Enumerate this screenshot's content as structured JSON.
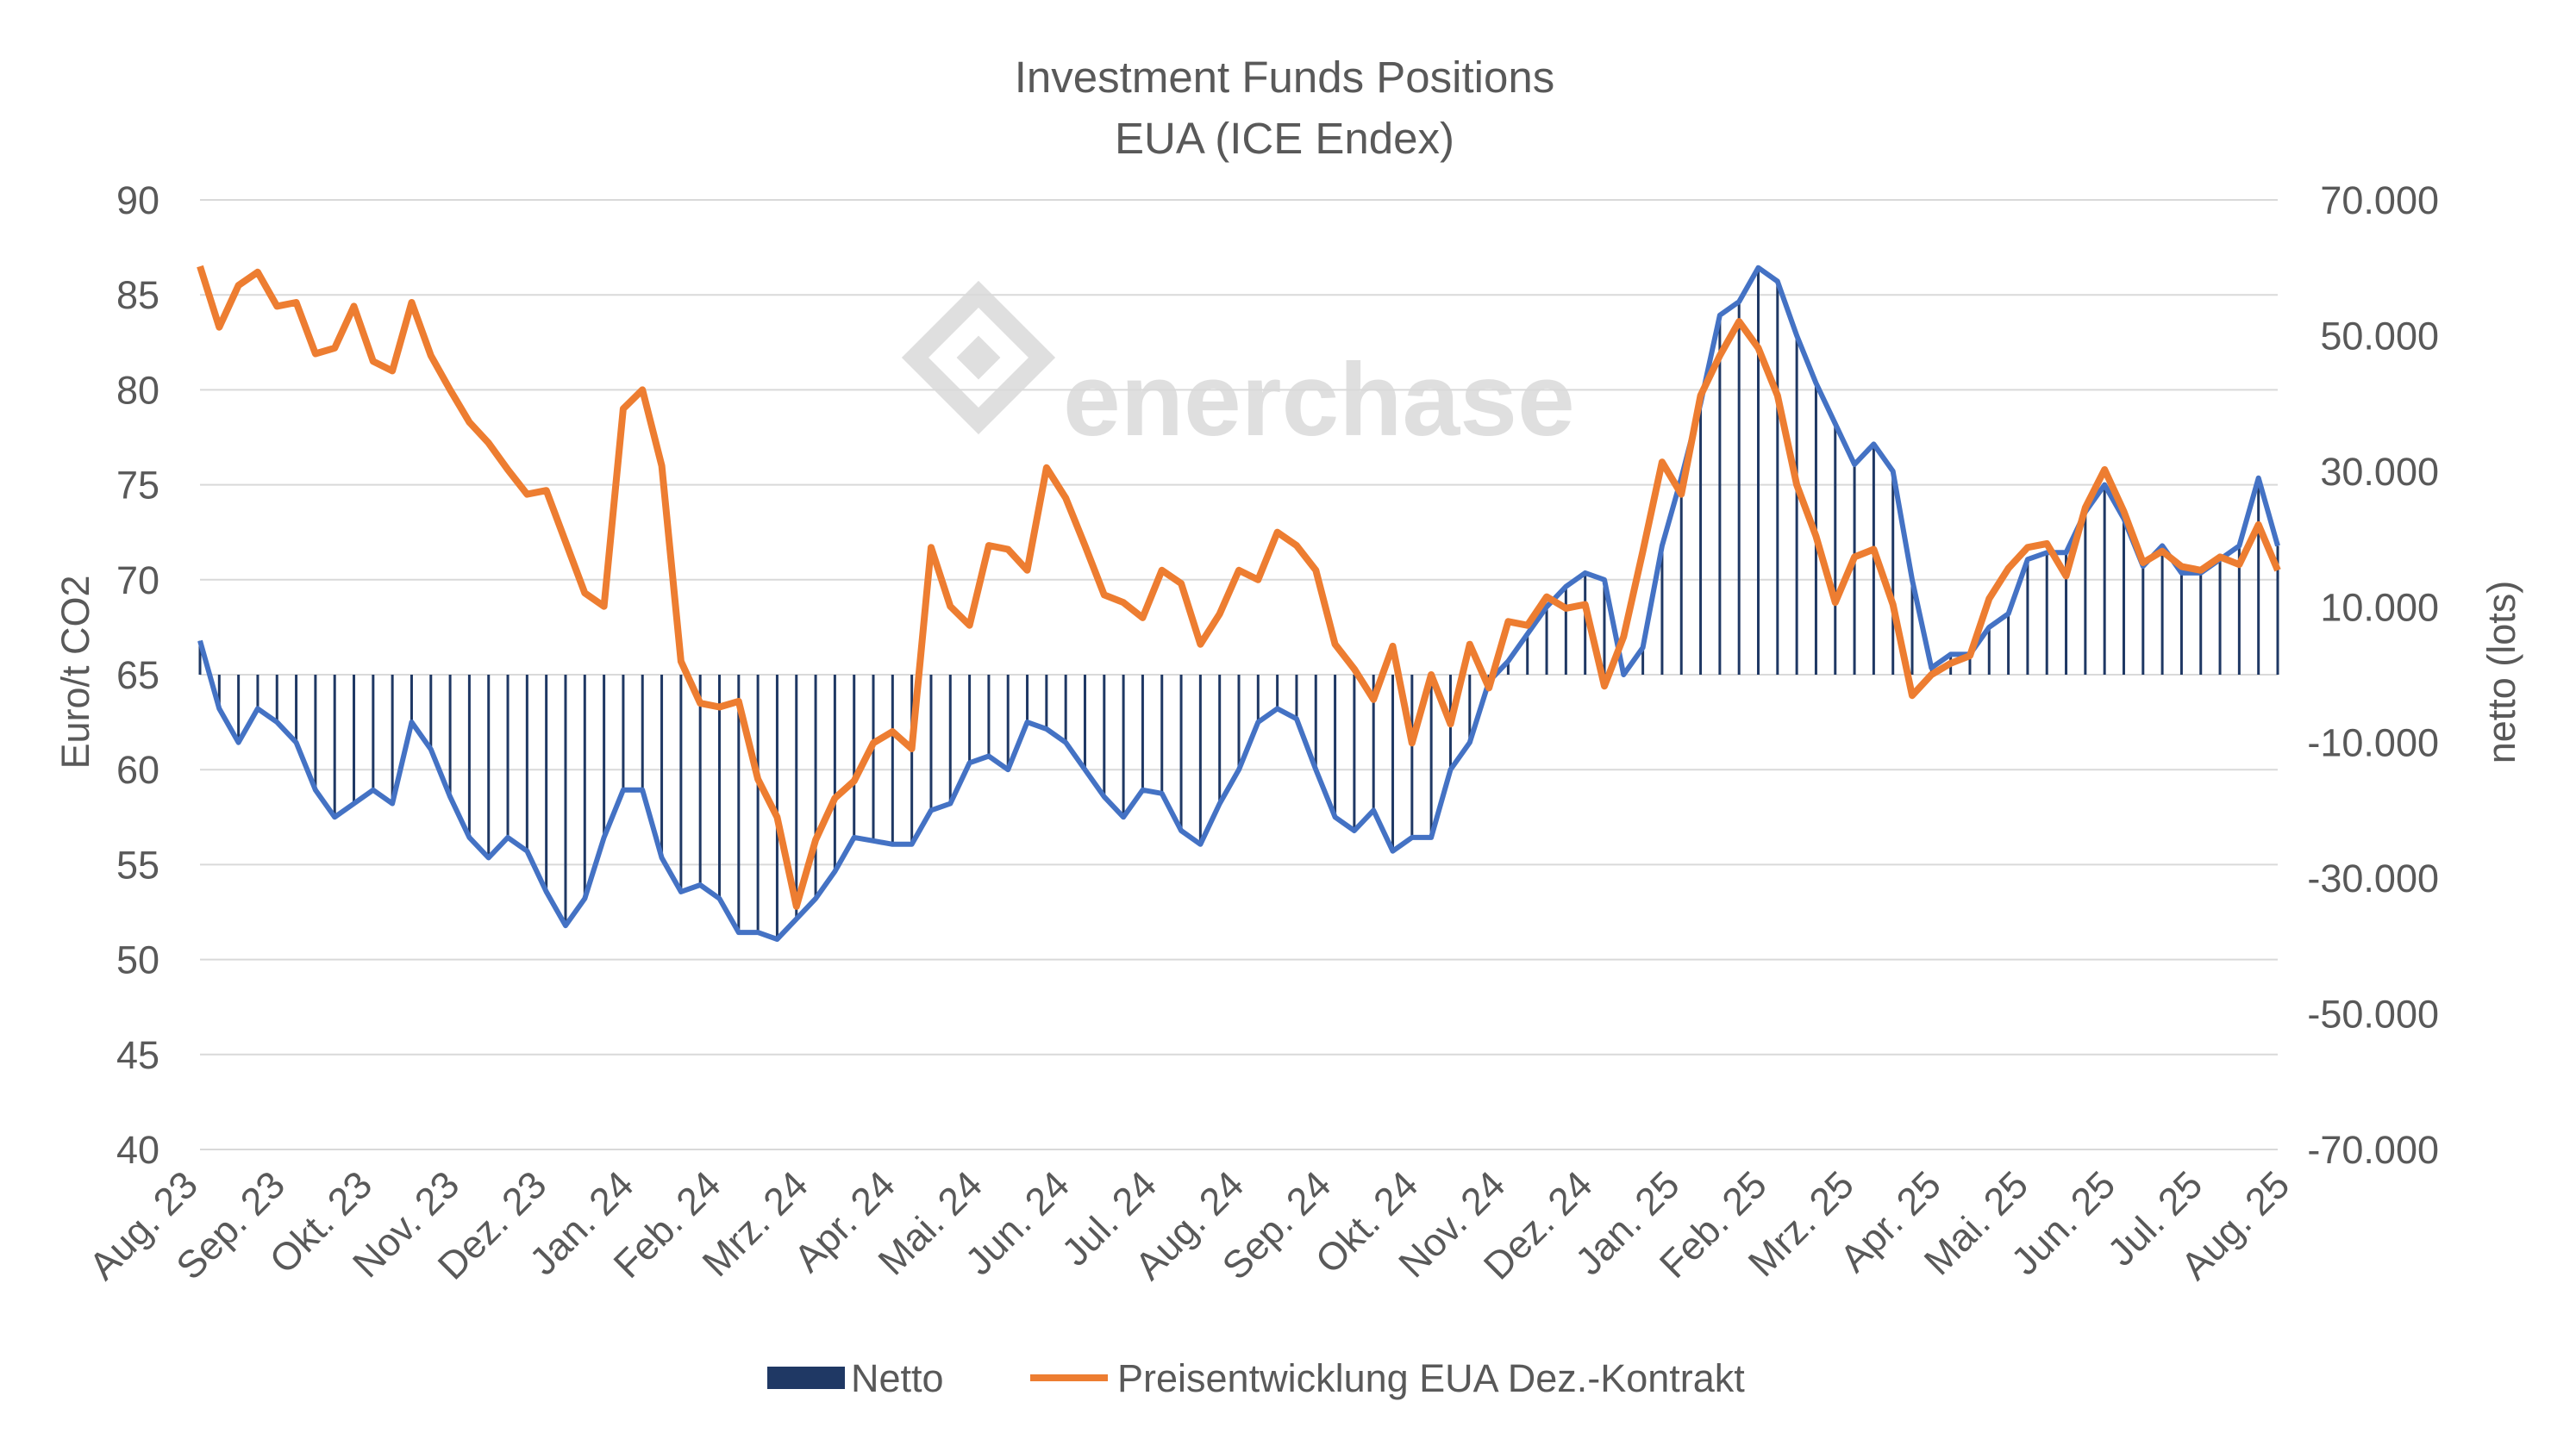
{
  "watermark": "enerchase",
  "chart_data": {
    "type": "line",
    "title": [
      "Investment Funds Positions",
      "EUA (ICE Endex)"
    ],
    "ylabel_left": "Euro/t CO2",
    "ylabel_right": "netto (lots)",
    "ylim_left": [
      40,
      90
    ],
    "yticks_left": [
      "40",
      "45",
      "50",
      "55",
      "60",
      "65",
      "70",
      "75",
      "80",
      "85",
      "90"
    ],
    "ylim_right": [
      -70000,
      70000
    ],
    "yticks_right": [
      "-70.000",
      "-50.000",
      "-30.000",
      "-10.000",
      "10.000",
      "30.000",
      "50.000",
      "70.000"
    ],
    "xtick_labels": [
      "Aug. 23",
      "Sep. 23",
      "Okt. 23",
      "Nov. 23",
      "Dez. 23",
      "Jan. 24",
      "Feb. 24",
      "Mrz. 24",
      "Apr. 24",
      "Mai. 24",
      "Jun. 24",
      "Jul. 24",
      "Aug. 24",
      "Sep. 24",
      "Okt. 24",
      "Nov. 24",
      "Dez. 24",
      "Jan. 25",
      "Feb. 25",
      "Mrz. 25",
      "Apr. 25",
      "Mai. 25",
      "Jun. 25",
      "Jul. 25",
      "Aug. 25"
    ],
    "grid": true,
    "legend_position": "bottom",
    "colors": {
      "netto_line": "#4472C4",
      "netto_bars": "#1F3864",
      "price": "#ED7D31",
      "grid": "#d9d9d9"
    },
    "series": [
      {
        "name": "Netto",
        "axis": "right",
        "style": "line-with-bars",
        "values": [
          5000,
          -5000,
          -10000,
          -5000,
          -7000,
          -10000,
          -17000,
          -21000,
          -19000,
          -17000,
          -19000,
          -7000,
          -11000,
          -18000,
          -24000,
          -27000,
          -24000,
          -26000,
          -32000,
          -37000,
          -33000,
          -24000,
          -17000,
          -17000,
          -27000,
          -32000,
          -31000,
          -33000,
          -38000,
          -38000,
          -39000,
          -36000,
          -33000,
          -29000,
          -24000,
          -24500,
          -25000,
          -25000,
          -20000,
          -19000,
          -13000,
          -12000,
          -14000,
          -7000,
          -8000,
          -10000,
          -14000,
          -18000,
          -21000,
          -17000,
          -17500,
          -23000,
          -25000,
          -19000,
          -14000,
          -7000,
          -5000,
          -6500,
          -14000,
          -21000,
          -23000,
          -20000,
          -26000,
          -24000,
          -24000,
          -14000,
          -10000,
          -1000,
          2000,
          6000,
          10000,
          13000,
          15000,
          14000,
          0,
          4000,
          19000,
          29000,
          40000,
          53000,
          55000,
          60000,
          58000,
          50000,
          43000,
          37000,
          31000,
          34000,
          30000,
          14000,
          1000,
          3000,
          3000,
          7000,
          9000,
          17000,
          18000,
          18000,
          24000,
          28000,
          23000,
          16000,
          19000,
          15000,
          15000,
          17000,
          19000,
          29000,
          19000
        ]
      },
      {
        "name": "Preisentwicklung EUA Dez.-Kontrakt",
        "axis": "left",
        "style": "line",
        "values": [
          86.5,
          83.3,
          85.5,
          86.2,
          84.4,
          84.6,
          81.9,
          82.2,
          84.4,
          81.5,
          81.0,
          84.6,
          81.8,
          80.0,
          78.3,
          77.2,
          75.8,
          74.5,
          74.7,
          72.0,
          69.3,
          68.6,
          79.0,
          80.0,
          76.0,
          65.7,
          63.5,
          63.3,
          63.6,
          59.5,
          57.5,
          52.8,
          56.3,
          58.5,
          59.4,
          61.4,
          62.0,
          61.1,
          71.7,
          68.6,
          67.6,
          71.8,
          71.6,
          70.5,
          75.9,
          74.3,
          71.8,
          69.2,
          68.8,
          68.0,
          70.5,
          69.8,
          66.6,
          68.2,
          70.5,
          70.0,
          72.5,
          71.8,
          70.5,
          66.6,
          65.3,
          63.7,
          66.5,
          61.4,
          65.0,
          62.4,
          66.6,
          64.3,
          67.8,
          67.6,
          69.1,
          68.5,
          68.7,
          64.4,
          67.0,
          71.5,
          76.2,
          74.5,
          79.7,
          81.8,
          83.6,
          82.2,
          79.7,
          75.0,
          72.3,
          68.8,
          71.2,
          71.6,
          68.7,
          63.9,
          65.0,
          65.6,
          66.0,
          69.0,
          70.6,
          71.7,
          71.9,
          70.2,
          73.8,
          75.8,
          73.6,
          70.9,
          71.5,
          70.7,
          70.5,
          71.2,
          70.8,
          72.9,
          70.5
        ]
      }
    ]
  }
}
